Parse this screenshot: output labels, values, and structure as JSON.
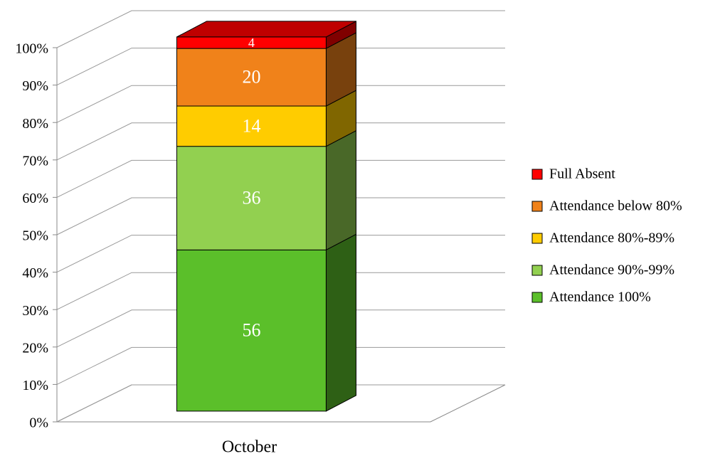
{
  "chart_data": {
    "type": "bar",
    "stacking": "percent",
    "categories": [
      "October"
    ],
    "series": [
      {
        "name": "Attendance 100%",
        "color": "#5bbf2a",
        "values": [
          56
        ]
      },
      {
        "name": "Attendance 90%-99%",
        "color": "#92d050",
        "values": [
          36
        ]
      },
      {
        "name": "Attendance 80%-89%",
        "color": "#ffcc00",
        "values": [
          14
        ]
      },
      {
        "name": "Attendance below 80%",
        "color": "#f0821a",
        "values": [
          20
        ]
      },
      {
        "name": "Full Absent",
        "color": "#ff0000",
        "values": [
          4
        ]
      }
    ],
    "ylim": [
      0,
      100
    ],
    "yticks": [
      {
        "value": 0,
        "label": "0%"
      },
      {
        "value": 10,
        "label": "10%"
      },
      {
        "value": 20,
        "label": "20%"
      },
      {
        "value": 30,
        "label": "30%"
      },
      {
        "value": 40,
        "label": "40%"
      },
      {
        "value": 50,
        "label": "50%"
      },
      {
        "value": 60,
        "label": "60%"
      },
      {
        "value": 70,
        "label": "70%"
      },
      {
        "value": 80,
        "label": "80%"
      },
      {
        "value": 90,
        "label": "90%"
      },
      {
        "value": 100,
        "label": "100%"
      }
    ],
    "grid": true,
    "legend": "right"
  }
}
